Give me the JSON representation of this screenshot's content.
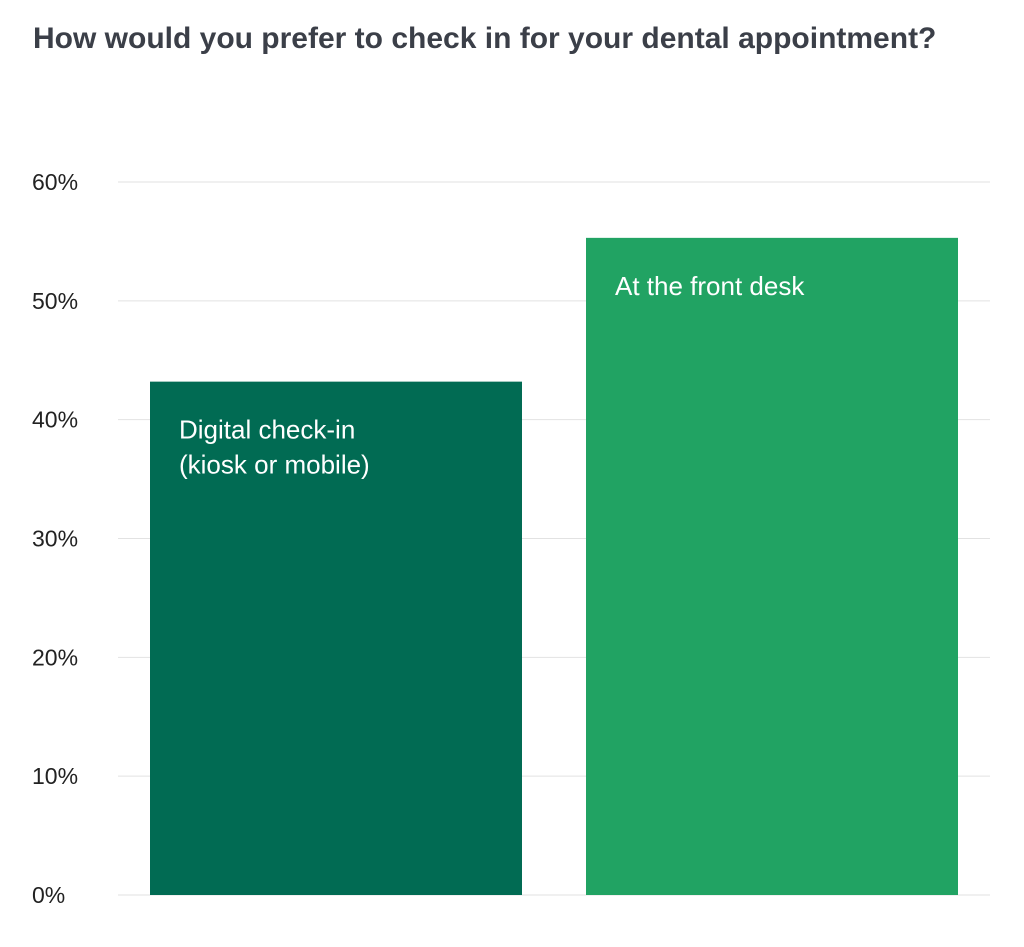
{
  "chart_data": {
    "type": "bar",
    "title": "How would you prefer to check in for your dental appointment?",
    "xlabel": "",
    "ylabel": "",
    "ylim": [
      0,
      60
    ],
    "yticks": [
      0,
      10,
      20,
      30,
      40,
      50,
      60
    ],
    "ytick_labels": [
      "0%",
      "10%",
      "20%",
      "30%",
      "40%",
      "50%",
      "60%"
    ],
    "grid": true,
    "legend": "none",
    "categories": [
      "Digital check-in (kiosk or mobile)",
      "At the front desk"
    ],
    "values": [
      43.2,
      55.3
    ],
    "bar_labels": [
      [
        "Digital check-in",
        "(kiosk or mobile)"
      ],
      [
        "At the front desk"
      ]
    ],
    "colors": [
      "#016b53",
      "#21a363"
    ]
  }
}
